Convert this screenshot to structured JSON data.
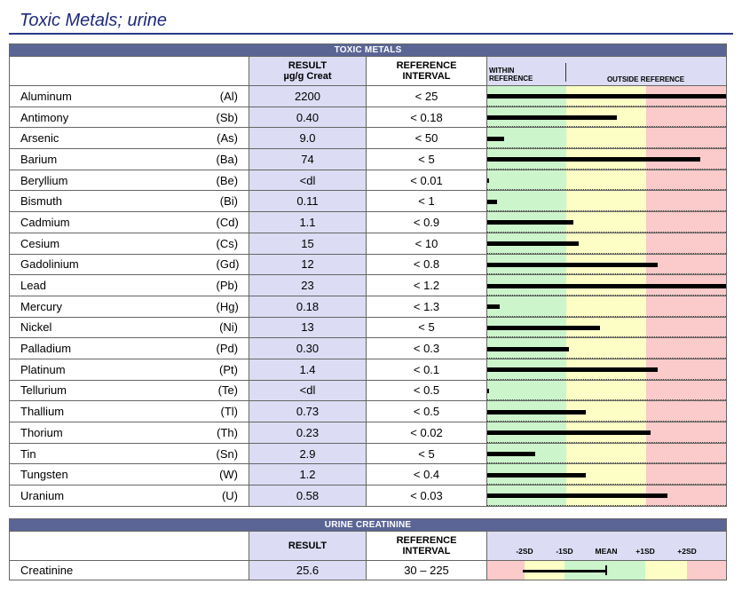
{
  "title": "Toxic Metals; urine",
  "toxic": {
    "banner": "TOXIC METALS",
    "col_result": "RESULT",
    "col_result_unit": "µg/g Creat",
    "col_ref_1": "REFERENCE",
    "col_ref_2": "INTERVAL",
    "col_within_1": "WITHIN",
    "col_within_2": "REFERENCE",
    "col_outside": "OUTSIDE REFERENCE",
    "rows": [
      {
        "name": "Aluminum",
        "symbol": "(Al)",
        "result": "2200",
        "ref": "< 25",
        "level": 1.0
      },
      {
        "name": "Antimony",
        "symbol": "(Sb)",
        "result": "0.40",
        "ref": "< 0.18",
        "level": 0.54
      },
      {
        "name": "Arsenic",
        "symbol": "(As)",
        "result": "9.0",
        "ref": "< 50",
        "level": 0.07
      },
      {
        "name": "Barium",
        "symbol": "(Ba)",
        "result": "74",
        "ref": "< 5",
        "level": 0.89
      },
      {
        "name": "Beryllium",
        "symbol": "(Be)",
        "result": "<dl",
        "ref": "< 0.01",
        "level": 0.005
      },
      {
        "name": "Bismuth",
        "symbol": "(Bi)",
        "result": "0.11",
        "ref": "< 1",
        "level": 0.04
      },
      {
        "name": "Cadmium",
        "symbol": "(Cd)",
        "result": "1.1",
        "ref": "< 0.9",
        "level": 0.36
      },
      {
        "name": "Cesium",
        "symbol": "(Cs)",
        "result": "15",
        "ref": "< 10",
        "level": 0.38
      },
      {
        "name": "Gadolinium",
        "symbol": "(Gd)",
        "result": "12",
        "ref": "< 0.8",
        "level": 0.71
      },
      {
        "name": "Lead",
        "symbol": "(Pb)",
        "result": "23",
        "ref": "< 1.2",
        "level": 1.0
      },
      {
        "name": "Mercury",
        "symbol": "(Hg)",
        "result": "0.18",
        "ref": "< 1.3",
        "level": 0.05
      },
      {
        "name": "Nickel",
        "symbol": "(Ni)",
        "result": "13",
        "ref": "< 5",
        "level": 0.47
      },
      {
        "name": "Palladium",
        "symbol": "(Pd)",
        "result": "0.30",
        "ref": "< 0.3",
        "level": 0.34
      },
      {
        "name": "Platinum",
        "symbol": "(Pt)",
        "result": "1.4",
        "ref": "< 0.1",
        "level": 0.71
      },
      {
        "name": "Tellurium",
        "symbol": "(Te)",
        "result": "<dl",
        "ref": "< 0.5",
        "level": 0.005
      },
      {
        "name": "Thallium",
        "symbol": "(Tl)",
        "result": "0.73",
        "ref": "< 0.5",
        "level": 0.41
      },
      {
        "name": "Thorium",
        "symbol": "(Th)",
        "result": "0.23",
        "ref": "< 0.02",
        "level": 0.68
      },
      {
        "name": "Tin",
        "symbol": "(Sn)",
        "result": "2.9",
        "ref": "< 5",
        "level": 0.2
      },
      {
        "name": "Tungsten",
        "symbol": "(W)",
        "result": "1.2",
        "ref": "< 0.4",
        "level": 0.41
      },
      {
        "name": "Uranium",
        "symbol": "(U)",
        "result": "0.58",
        "ref": "< 0.03",
        "level": 0.75
      }
    ]
  },
  "creatinine": {
    "banner": "URINE CREATININE",
    "col_result": "RESULT",
    "col_ref_1": "REFERENCE",
    "col_ref_2": "INTERVAL",
    "sd_labels": [
      "-2SD",
      "-1SD",
      "MEAN",
      "+1SD",
      "+2SD"
    ],
    "row": {
      "name": "Creatinine",
      "result": "25.6",
      "ref": "30 – 225"
    }
  },
  "colors": {
    "within": "#ccf5cc",
    "caution": "#fdfdc6",
    "outside": "#fbcaca",
    "header_lavender": "#dcdcf4",
    "banner": "#5b6595",
    "title": "#1f2a7a"
  }
}
